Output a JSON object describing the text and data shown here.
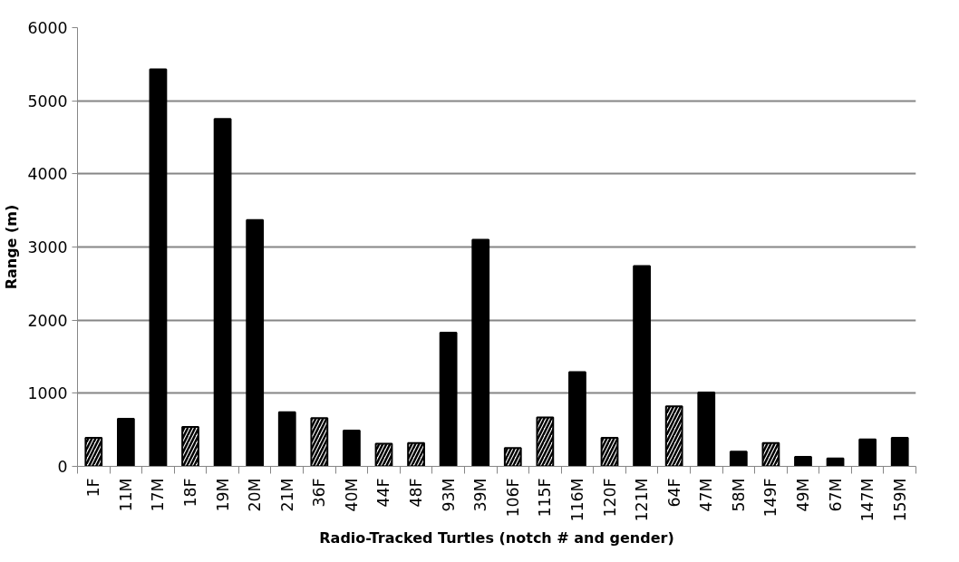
{
  "chart_data": {
    "type": "bar",
    "xlabel": "Radio-Tracked Turtles (notch # and gender)",
    "ylabel": "Range (m)",
    "categories": [
      "1F",
      "11M",
      "17M",
      "18F",
      "19M",
      "20M",
      "21M",
      "36F",
      "40M",
      "44F",
      "48F",
      "93M",
      "39M",
      "106F",
      "115F",
      "116M",
      "120F",
      "121M",
      "64F",
      "47M",
      "58M",
      "149F",
      "49M",
      "67M",
      "147M",
      "159M"
    ],
    "values": [
      390,
      650,
      5430,
      540,
      4750,
      3370,
      740,
      660,
      490,
      310,
      320,
      1830,
      3100,
      250,
      670,
      1290,
      390,
      2740,
      820,
      1010,
      200,
      320,
      130,
      110,
      370,
      390
    ],
    "colors": [
      "#ffffff",
      "#000000",
      "#000000",
      "#ffffff",
      "#000000",
      "#000000",
      "#000000",
      "#ffffff",
      "#000000",
      "#ffffff",
      "#ffffff",
      "#000000",
      "#000000",
      "#ffffff",
      "#ffffff",
      "#000000",
      "#ffffff",
      "#000000",
      "#ffffff",
      "#000000",
      "#000000",
      "#ffffff",
      "#000000",
      "#000000",
      "#000000",
      "#000000"
    ],
    "ylim": [
      0,
      6000
    ],
    "yticks": [
      0,
      1000,
      2000,
      3000,
      4000,
      5000,
      6000
    ],
    "grid": "y"
  }
}
